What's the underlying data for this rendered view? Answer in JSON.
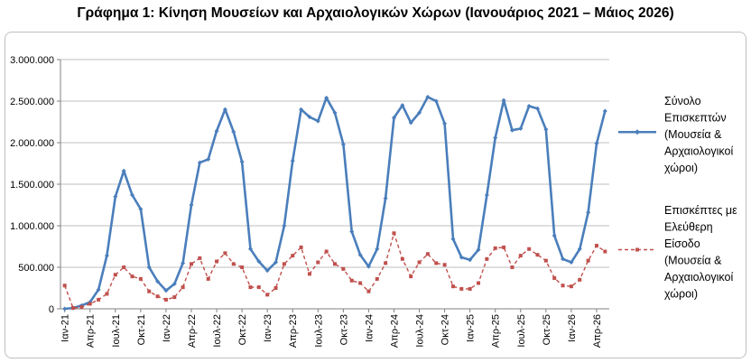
{
  "chart_data": {
    "type": "line",
    "title": "Γράφημα 1: Κίνηση Μουσείων και Αρχαιολογικών Χώρων (Ιανουάριος 2021 – Μάιος 2026)",
    "xlabel": "",
    "ylabel": "",
    "ylim": [
      0,
      3000000
    ],
    "yticks": [
      "0",
      "500.000",
      "1.000.000",
      "1.500.000",
      "2.000.000",
      "2.500.000",
      "3.000.000"
    ],
    "yticks_values": [
      0,
      500000,
      1000000,
      1500000,
      2000000,
      2500000,
      3000000
    ],
    "grid": true,
    "legend_position": "right",
    "x_tick_labels": [
      "Ιαν-21",
      "Απρ-21",
      "Ιουλ-21",
      "Οκτ-21",
      "Ιαν-22",
      "Απρ-22",
      "Ιουλ-22",
      "Οκτ-22",
      "Ιαν-23",
      "Απρ-23",
      "Ιουλ-23",
      "Οκτ-23",
      "Ιαν-24",
      "Απρ-24",
      "Ιουλ-24",
      "Οκτ-24",
      "Ιαν-25",
      "Απρ-25",
      "Ιουλ-25",
      "Οκτ-25",
      "Ιαν-26",
      "Απρ-26"
    ],
    "series": [
      {
        "name": "Σύνολο Επισκεπτών (Μουσεία & Αρχαιολογικοί χώροι)",
        "legend_lines": [
          "Σύνολο",
          "Επισκεπτών",
          "(Μουσεία &",
          "Αρχαιολογικοί",
          "χώροι)"
        ],
        "color": "#4a7ebb",
        "style": "solid",
        "values": [
          0,
          10000,
          40000,
          80000,
          230000,
          640000,
          1350000,
          1660000,
          1370000,
          1200000,
          500000,
          330000,
          220000,
          300000,
          550000,
          1250000,
          1760000,
          1800000,
          2140000,
          2400000,
          2130000,
          1770000,
          720000,
          570000,
          460000,
          560000,
          1000000,
          1780000,
          2400000,
          2310000,
          2260000,
          2540000,
          2360000,
          1980000,
          930000,
          650000,
          510000,
          720000,
          1330000,
          2300000,
          2450000,
          2240000,
          2360000,
          2550000,
          2500000,
          2230000,
          840000,
          620000,
          590000,
          710000,
          1370000,
          2060000,
          2510000,
          2150000,
          2170000,
          2440000,
          2410000,
          2160000,
          880000,
          600000,
          560000,
          720000,
          1160000,
          1990000,
          2380000
        ]
      },
      {
        "name": "Επισκέπτες με Ελεύθερη Είσοδο (Μουσεία & Αρχαιολογικοί χώροι)",
        "legend_lines": [
          "Επισκέπτες με",
          "Ελεύθερη",
          "Είσοδο",
          "(Μουσεία &",
          "Αρχαιολογικοί",
          "χώροι)"
        ],
        "color": "#c0504d",
        "style": "dashed",
        "values": [
          280000,
          10000,
          20000,
          60000,
          110000,
          180000,
          410000,
          500000,
          390000,
          360000,
          210000,
          150000,
          110000,
          140000,
          260000,
          540000,
          610000,
          360000,
          570000,
          670000,
          540000,
          500000,
          260000,
          260000,
          170000,
          250000,
          540000,
          640000,
          740000,
          420000,
          560000,
          690000,
          540000,
          480000,
          340000,
          310000,
          210000,
          360000,
          550000,
          910000,
          600000,
          390000,
          560000,
          660000,
          550000,
          530000,
          270000,
          240000,
          240000,
          310000,
          600000,
          730000,
          740000,
          500000,
          640000,
          720000,
          650000,
          580000,
          370000,
          280000,
          270000,
          350000,
          580000,
          760000,
          690000
        ]
      }
    ]
  }
}
